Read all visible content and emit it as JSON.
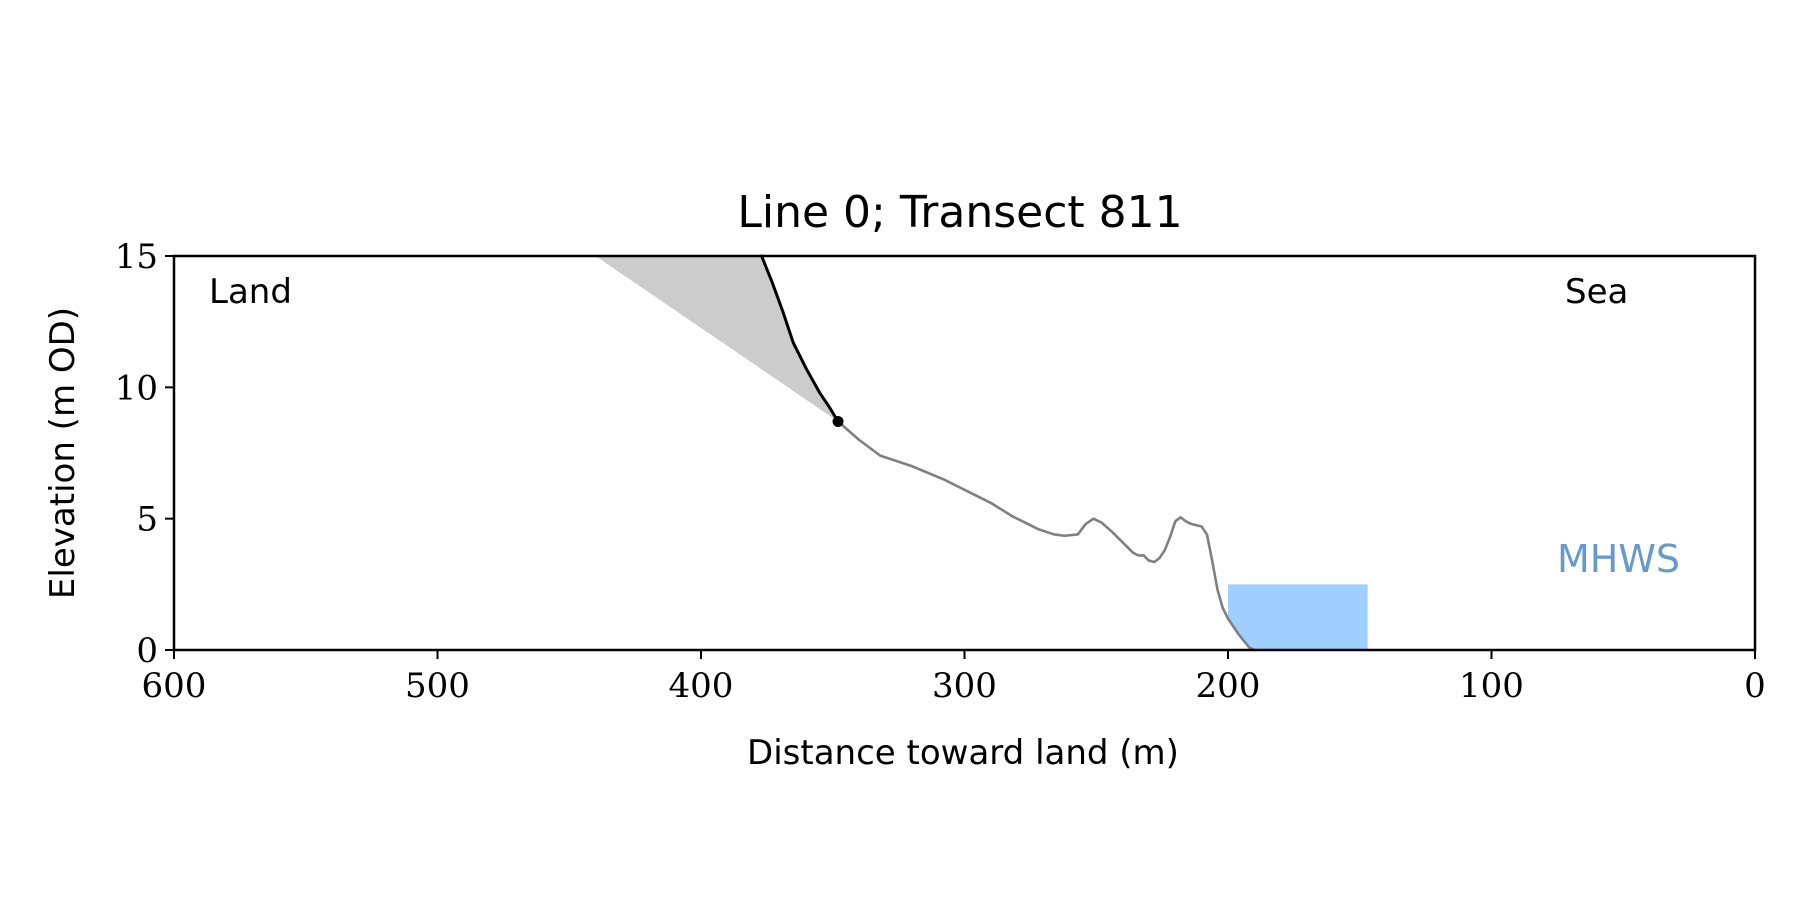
{
  "chart_data": {
    "type": "area",
    "title": "Line 0; Transect 811",
    "xlabel": "Distance toward land (m)",
    "ylabel": "Elevation (m OD)",
    "xlim": [
      600,
      0
    ],
    "ylim": [
      0,
      15
    ],
    "x_ticks": [
      600,
      500,
      400,
      300,
      200,
      100,
      0
    ],
    "y_ticks": [
      0,
      5,
      10,
      15
    ],
    "grid": false,
    "annotations": {
      "land": "Land",
      "sea": "Sea",
      "mhws": "MHWS"
    },
    "colors": {
      "profile": "#808080",
      "cliff": "#000000",
      "shaded_wedge": "#cccccc",
      "mhws_fill": "#9fcfff",
      "mhws_label": "#6699cc"
    },
    "series": [
      {
        "role": "profile",
        "x": [
          348,
          340,
          332,
          329,
          320,
          308,
          290,
          282,
          272,
          266,
          262,
          257,
          254,
          251,
          248,
          244,
          240,
          236,
          234,
          232,
          230,
          228,
          226,
          224,
          222,
          220,
          218,
          216,
          214,
          212,
          210,
          208,
          206,
          204,
          202,
          200,
          198,
          196,
          194,
          192,
          190
        ],
        "y": [
          8.7,
          8.0,
          7.4,
          7.3,
          7.0,
          6.5,
          5.6,
          5.1,
          4.6,
          4.4,
          4.35,
          4.4,
          4.8,
          5.0,
          4.85,
          4.5,
          4.1,
          3.7,
          3.6,
          3.6,
          3.4,
          3.35,
          3.5,
          3.8,
          4.3,
          4.9,
          5.05,
          4.9,
          4.8,
          4.75,
          4.7,
          4.4,
          3.4,
          2.3,
          1.6,
          1.2,
          0.9,
          0.6,
          0.35,
          0.1,
          0
        ]
      },
      {
        "role": "cliff",
        "x": [
          377,
          373,
          369,
          365,
          360,
          355,
          351,
          348
        ],
        "y": [
          15,
          14.0,
          12.9,
          11.7,
          10.7,
          9.8,
          9.2,
          8.7
        ]
      }
    ],
    "cliff_toe": {
      "x": 348,
      "y": 8.7
    },
    "shaded_wedge": {
      "x": [
        440,
        377,
        373,
        369,
        365,
        360,
        355,
        351,
        348
      ],
      "y": [
        15,
        15,
        14.0,
        12.9,
        11.7,
        10.7,
        9.8,
        9.2,
        8.7
      ]
    },
    "mhws_band": {
      "x_start": 200,
      "x_end": 147,
      "level": 2.5
    }
  }
}
